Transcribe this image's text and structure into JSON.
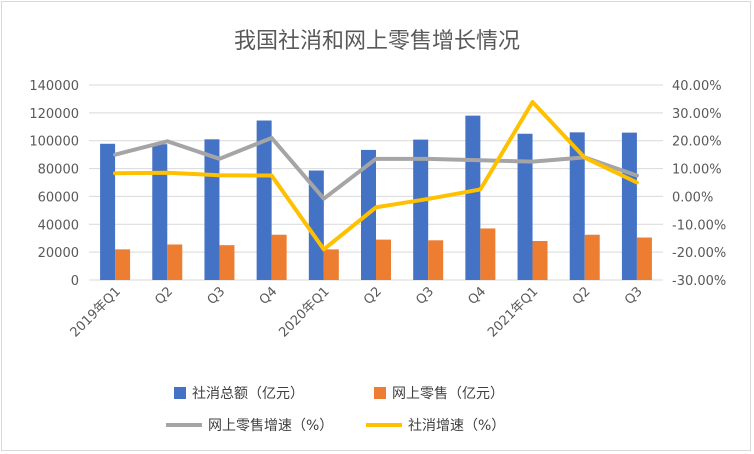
{
  "chart_data": {
    "type": "bar+line",
    "title": "我国社消和网上零售增长情况",
    "categories": [
      "2019年Q1",
      "Q2",
      "Q3",
      "Q4",
      "2020年Q1",
      "Q2",
      "Q3",
      "Q4",
      "2021年Q1",
      "Q2",
      "Q3"
    ],
    "left_axis": {
      "ylim": [
        0,
        140000
      ],
      "ticks": [
        "0",
        "20000",
        "40000",
        "60000",
        "80000",
        "100000",
        "120000",
        "140000"
      ]
    },
    "right_axis": {
      "ylim": [
        -30,
        40
      ],
      "ticks": [
        "-30.00%",
        "-20.00%",
        "-10.00%",
        "0.00%",
        "10.00%",
        "20.00%",
        "30.00%",
        "40.00%"
      ]
    },
    "series": [
      {
        "name": "社消总额（亿元）",
        "type": "bar",
        "axis": "left",
        "color": "#4472c4",
        "values": [
          97800,
          97500,
          101000,
          114500,
          78600,
          93400,
          100800,
          118000,
          105000,
          106000,
          105800
        ]
      },
      {
        "name": "网上零售（亿元）",
        "type": "bar",
        "axis": "left",
        "color": "#ed7d31",
        "values": [
          22000,
          25500,
          25000,
          32500,
          22000,
          29000,
          28500,
          37000,
          28000,
          32500,
          30500
        ]
      },
      {
        "name": "网上零售增速（%）",
        "type": "line",
        "axis": "right",
        "color": "#a5a5a5",
        "values": [
          15,
          19.8,
          13.5,
          21,
          -0.8,
          13.5,
          13.5,
          13,
          12.5,
          14,
          7.5
        ]
      },
      {
        "name": "社消增速（%）",
        "type": "line",
        "axis": "right",
        "color": "#ffc000",
        "values": [
          8.3,
          8.5,
          7.6,
          7.5,
          -19,
          -3.9,
          -0.9,
          2.5,
          33.9,
          13.9,
          5
        ]
      }
    ],
    "legend_position": "bottom",
    "grid": true
  }
}
